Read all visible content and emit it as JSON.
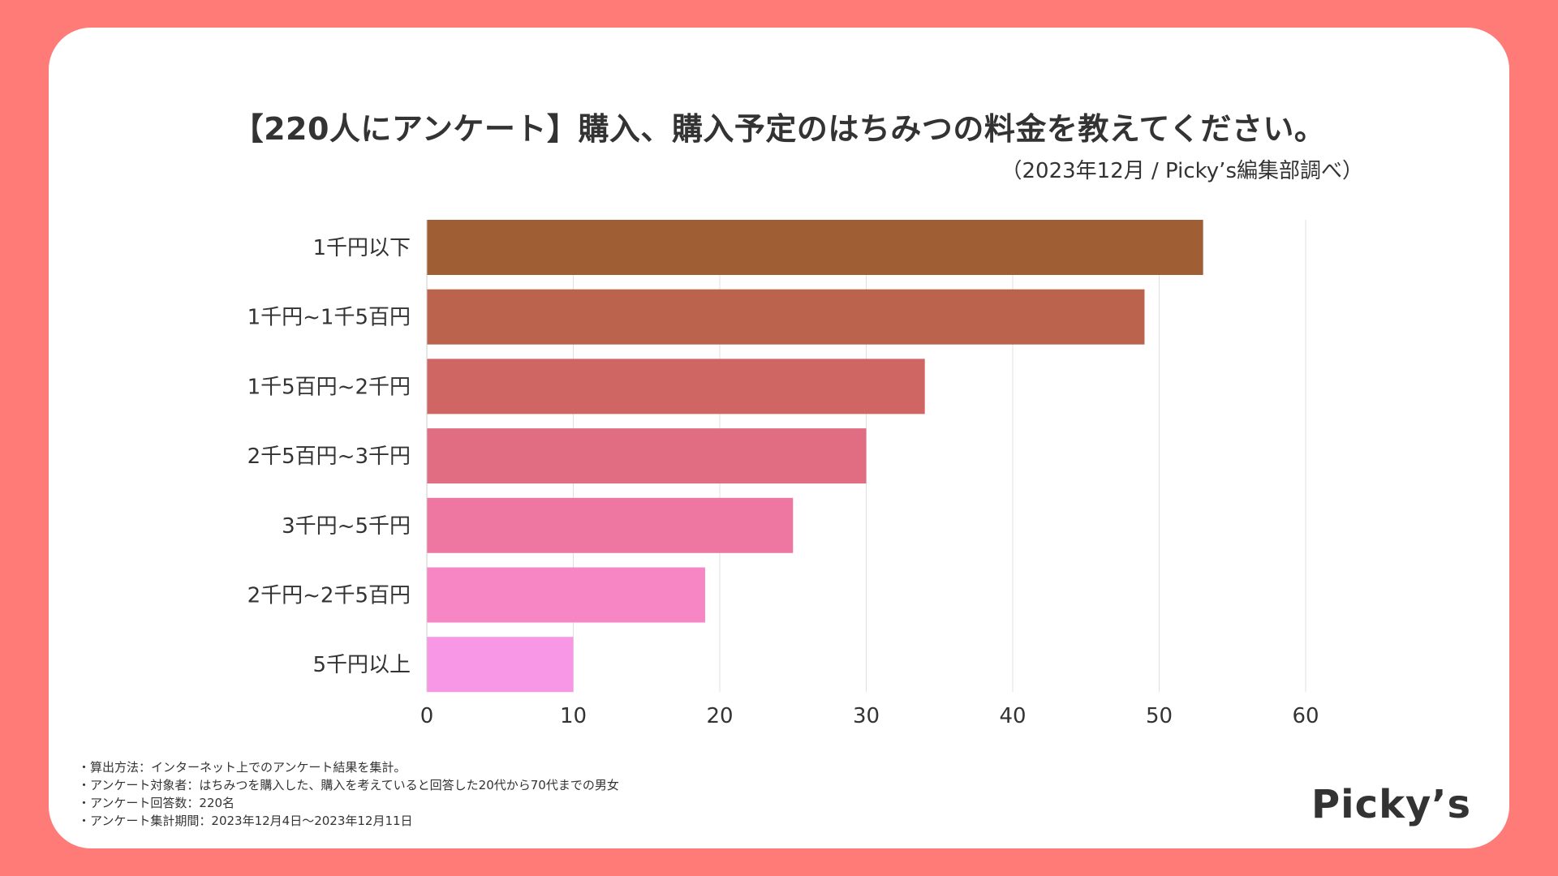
{
  "title": "【220人にアンケート】購入、購入予定のはちみつの料金を教えてください。",
  "subtitle": "（2023年12月 / Picky’s編集部調べ）",
  "footnotes": [
    "・算出方法：インターネット上でのアンケート結果を集計。",
    "・アンケート対象者：はちみつを購入した、購入を考えていると回答した20代から70代までの男女",
    "・アンケート回答数：220名",
    "・アンケート集計期間：2023年12月4日〜2023年12月11日"
  ],
  "logo": "Picky’s",
  "colors": {
    "background": "#FF7B78",
    "card": "#FFFFFF",
    "text": "#333333",
    "grid": "#E0E0E0"
  },
  "chart_data": {
    "type": "bar",
    "orientation": "horizontal",
    "title": "【220人にアンケート】購入、購入予定のはちみつの料金を教えてください。",
    "xlabel": "",
    "ylabel": "",
    "categories": [
      "1千円以下",
      "1千円~1千5百円",
      "1千5百円~2千円",
      "2千5百円~3千円",
      "3千円~5千円",
      "2千円~2千5百円",
      "5千円以上"
    ],
    "values": [
      53,
      49,
      34,
      30,
      25,
      19,
      10
    ],
    "bar_colors": [
      "#A05E34",
      "#BB634D",
      "#D06664",
      "#E16D83",
      "#EE77A2",
      "#F687C4",
      "#F797E6"
    ],
    "xlim": [
      0,
      60
    ],
    "xticks": [
      0,
      10,
      20,
      30,
      40,
      50,
      60
    ],
    "grid": true,
    "legend": "none"
  }
}
